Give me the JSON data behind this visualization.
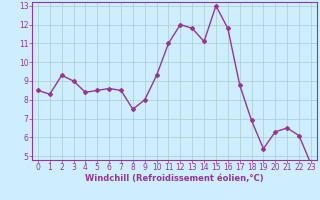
{
  "x": [
    0,
    1,
    2,
    3,
    4,
    5,
    6,
    7,
    8,
    9,
    10,
    11,
    12,
    13,
    14,
    15,
    16,
    17,
    18,
    19,
    20,
    21,
    22,
    23
  ],
  "y": [
    8.5,
    8.3,
    9.3,
    9.0,
    8.4,
    8.5,
    8.6,
    8.5,
    7.5,
    8.0,
    9.3,
    11.0,
    12.0,
    11.8,
    11.1,
    13.0,
    11.8,
    8.8,
    6.9,
    5.4,
    6.3,
    6.5,
    6.1,
    4.6
  ],
  "line_color": "#993399",
  "marker": "D",
  "marker_size": 2.0,
  "linewidth": 1.0,
  "bg_color": "#cceeff",
  "grid_color": "#aacccc",
  "xlabel": "Windchill (Refroidissement éolien,°C)",
  "xlabel_color": "#993399",
  "tick_color": "#993399",
  "ylim": [
    4.8,
    13.2
  ],
  "yticks": [
    5,
    6,
    7,
    8,
    9,
    10,
    11,
    12,
    13
  ],
  "xticks": [
    0,
    1,
    2,
    3,
    4,
    5,
    6,
    7,
    8,
    9,
    10,
    11,
    12,
    13,
    14,
    15,
    16,
    17,
    18,
    19,
    20,
    21,
    22,
    23
  ],
  "spine_color": "#993399",
  "axis_bg": "#cceeff",
  "tick_fontsize": 5.5,
  "xlabel_fontsize": 6.0
}
